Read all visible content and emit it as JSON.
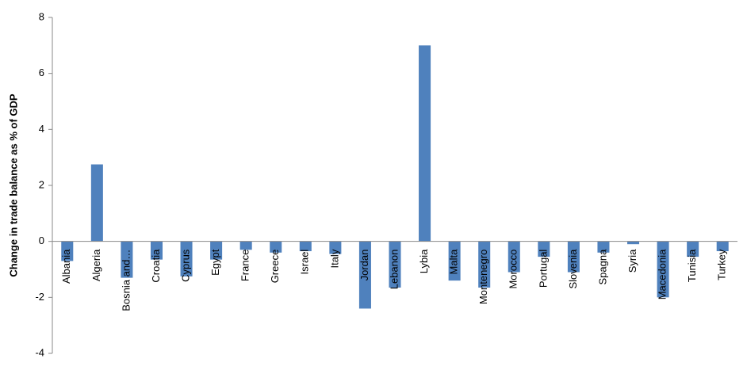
{
  "chart_data": {
    "type": "bar",
    "y_label": "Change in trade balance as % of GDP",
    "categories": [
      "Albania",
      "Algeria",
      "Bosnia and…",
      "Croatia",
      "Cyprus",
      "Egypt",
      "France",
      "Greece",
      "Israel",
      "Italy",
      "Jordan",
      "Lebanon",
      "Lybia",
      "Malta",
      "Montenegro",
      "Morocco",
      "Portugal",
      "Slovenia",
      "Spagna",
      "Syria",
      "Macedonia",
      "Tunisia",
      "Turkey"
    ],
    "values": [
      -0.7,
      2.75,
      -1.3,
      -0.65,
      -1.25,
      -0.65,
      -0.3,
      -0.4,
      -0.35,
      -0.45,
      -2.4,
      -1.65,
      7.0,
      -1.4,
      -1.65,
      -1.1,
      -0.55,
      -1.1,
      -0.4,
      -0.1,
      -2.0,
      -0.55,
      -0.35
    ],
    "color": "#4f81bd",
    "ylim": [
      -4,
      8
    ],
    "yticks": [
      -4,
      -2,
      0,
      2,
      4,
      6,
      8
    ],
    "grid": false
  }
}
